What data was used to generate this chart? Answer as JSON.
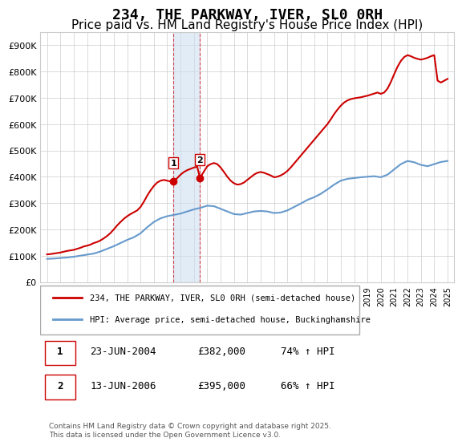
{
  "title": "234, THE PARKWAY, IVER, SL0 0RH",
  "subtitle": "Price paid vs. HM Land Registry's House Price Index (HPI)",
  "title_fontsize": 13,
  "subtitle_fontsize": 11,
  "ylabel": "",
  "ylim": [
    0,
    950000
  ],
  "yticks": [
    0,
    100000,
    200000,
    300000,
    400000,
    500000,
    600000,
    700000,
    800000,
    900000
  ],
  "ytick_labels": [
    "£0",
    "£100K",
    "£200K",
    "£300K",
    "£400K",
    "£500K",
    "£600K",
    "£700K",
    "£800K",
    "£900K"
  ],
  "xlim_start": 1994.5,
  "xlim_end": 2025.5,
  "hpi_color": "#6699cc",
  "sale_color": "#cc0000",
  "sale1_x": 2004.47,
  "sale1_y": 382000,
  "sale1_label": "1",
  "sale2_x": 2006.45,
  "sale2_y": 395000,
  "sale2_label": "2",
  "legend_sale_label": "234, THE PARKWAY, IVER, SL0 0RH (semi-detached house)",
  "legend_hpi_label": "HPI: Average price, semi-detached house, Buckinghamshire",
  "table_row1": [
    "1",
    "23-JUN-2004",
    "£382,000",
    "74% ↑ HPI"
  ],
  "table_row2": [
    "2",
    "13-JUN-2006",
    "£395,000",
    "66% ↑ HPI"
  ],
  "footnote": "Contains HM Land Registry data © Crown copyright and database right 2025.\nThis data is licensed under the Open Government Licence v3.0.",
  "bg_color": "#ffffff",
  "grid_color": "#cccccc",
  "shade_x1": 2004.47,
  "shade_x2": 2006.45,
  "hpi_years": [
    1995,
    1995.5,
    1996,
    1996.5,
    1997,
    1997.5,
    1998,
    1998.5,
    1999,
    1999.5,
    2000,
    2000.5,
    2001,
    2001.5,
    2002,
    2002.5,
    2003,
    2003.5,
    2004,
    2004.5,
    2005,
    2005.5,
    2006,
    2006.5,
    2007,
    2007.5,
    2008,
    2008.5,
    2009,
    2009.5,
    2010,
    2010.5,
    2011,
    2011.5,
    2012,
    2012.5,
    2013,
    2013.5,
    2014,
    2014.5,
    2015,
    2015.5,
    2016,
    2016.5,
    2017,
    2017.5,
    2018,
    2018.5,
    2019,
    2019.5,
    2020,
    2020.5,
    2021,
    2021.5,
    2022,
    2022.5,
    2023,
    2023.5,
    2024,
    2024.5,
    2025
  ],
  "hpi_values": [
    88000,
    89000,
    91000,
    93000,
    96000,
    100000,
    104000,
    108000,
    116000,
    126000,
    136000,
    148000,
    160000,
    170000,
    185000,
    208000,
    228000,
    242000,
    250000,
    255000,
    260000,
    268000,
    276000,
    282000,
    290000,
    288000,
    278000,
    268000,
    258000,
    256000,
    262000,
    268000,
    270000,
    268000,
    262000,
    264000,
    272000,
    285000,
    298000,
    312000,
    322000,
    335000,
    352000,
    370000,
    385000,
    392000,
    395000,
    398000,
    400000,
    402000,
    398000,
    408000,
    428000,
    448000,
    460000,
    455000,
    445000,
    440000,
    448000,
    456000,
    460000
  ],
  "sale_years": [
    1995,
    1995.25,
    1995.5,
    1995.75,
    1996,
    1996.25,
    1996.5,
    1996.75,
    1997,
    1997.25,
    1997.5,
    1997.75,
    1998,
    1998.25,
    1998.5,
    1998.75,
    1999,
    1999.25,
    1999.5,
    1999.75,
    2000,
    2000.25,
    2000.5,
    2000.75,
    2001,
    2001.25,
    2001.5,
    2001.75,
    2002,
    2002.25,
    2002.5,
    2002.75,
    2003,
    2003.25,
    2003.5,
    2003.75,
    2004,
    2004.25,
    2004.47,
    2004.75,
    2005,
    2005.25,
    2005.5,
    2005.75,
    2006,
    2006.25,
    2006.45,
    2006.75,
    2007,
    2007.25,
    2007.5,
    2007.75,
    2008,
    2008.25,
    2008.5,
    2008.75,
    2009,
    2009.25,
    2009.5,
    2009.75,
    2010,
    2010.25,
    2010.5,
    2010.75,
    2011,
    2011.25,
    2011.5,
    2011.75,
    2012,
    2012.25,
    2012.5,
    2012.75,
    2013,
    2013.25,
    2013.5,
    2013.75,
    2014,
    2014.25,
    2014.5,
    2014.75,
    2015,
    2015.25,
    2015.5,
    2015.75,
    2016,
    2016.25,
    2016.5,
    2016.75,
    2017,
    2017.25,
    2017.5,
    2017.75,
    2018,
    2018.25,
    2018.5,
    2018.75,
    2019,
    2019.25,
    2019.5,
    2019.75,
    2020,
    2020.25,
    2020.5,
    2020.75,
    2021,
    2021.25,
    2021.5,
    2021.75,
    2022,
    2022.25,
    2022.5,
    2022.75,
    2023,
    2023.25,
    2023.5,
    2023.75,
    2024,
    2024.25,
    2024.5,
    2024.75,
    2025
  ],
  "sale_values": [
    105000,
    106000,
    108000,
    110000,
    112000,
    115000,
    118000,
    120000,
    122000,
    126000,
    130000,
    135000,
    138000,
    142000,
    148000,
    152000,
    158000,
    166000,
    175000,
    186000,
    200000,
    215000,
    228000,
    240000,
    250000,
    258000,
    265000,
    272000,
    285000,
    305000,
    328000,
    348000,
    365000,
    378000,
    385000,
    388000,
    385000,
    382000,
    382000,
    395000,
    408000,
    418000,
    425000,
    430000,
    435000,
    438000,
    395000,
    420000,
    440000,
    448000,
    452000,
    448000,
    435000,
    418000,
    400000,
    385000,
    375000,
    370000,
    372000,
    378000,
    388000,
    398000,
    408000,
    415000,
    418000,
    415000,
    410000,
    405000,
    398000,
    400000,
    405000,
    412000,
    422000,
    435000,
    450000,
    465000,
    480000,
    495000,
    510000,
    525000,
    540000,
    555000,
    570000,
    585000,
    600000,
    618000,
    638000,
    655000,
    670000,
    682000,
    690000,
    695000,
    698000,
    700000,
    702000,
    705000,
    708000,
    712000,
    716000,
    720000,
    715000,
    720000,
    735000,
    760000,
    790000,
    818000,
    840000,
    855000,
    862000,
    858000,
    852000,
    848000,
    845000,
    848000,
    852000,
    858000,
    862000,
    765000,
    758000,
    765000,
    772000
  ]
}
